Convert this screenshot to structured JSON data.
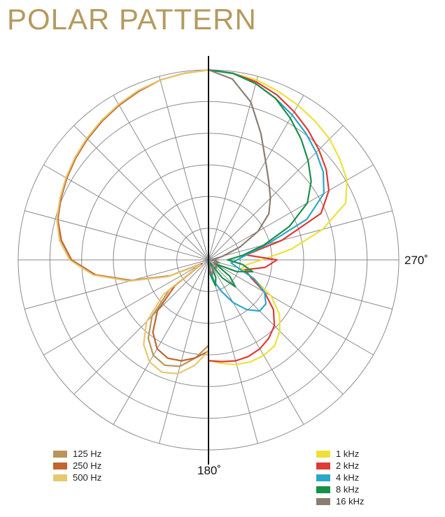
{
  "title": "POLAR PATTERN",
  "chart_data": {
    "type": "polar-line",
    "angle_labels": [
      {
        "deg": 270,
        "text": "270˚"
      },
      {
        "deg": 180,
        "text": "180˚"
      }
    ],
    "grid": {
      "rings": 6,
      "spokes_every_deg": 15
    },
    "series": [
      {
        "name": "125 Hz",
        "color": "#b8955a",
        "side": "left",
        "r": [
          1.0,
          0.99,
          0.98,
          0.96,
          0.94,
          0.92,
          0.9,
          0.88,
          0.86,
          0.84,
          0.82,
          0.78,
          0.72,
          0.6,
          0.42,
          0.22,
          0.04,
          0.26,
          0.42,
          0.52,
          0.58,
          0.6,
          0.58,
          0.52,
          0.45
        ],
        "angle_step": 7.5
      },
      {
        "name": "250 Hz",
        "color": "#c0652e",
        "side": "left",
        "r": [
          1.0,
          0.99,
          0.98,
          0.96,
          0.94,
          0.92,
          0.9,
          0.88,
          0.86,
          0.84,
          0.82,
          0.78,
          0.72,
          0.6,
          0.42,
          0.22,
          0.04,
          0.22,
          0.38,
          0.48,
          0.54,
          0.56,
          0.55,
          0.52,
          0.48
        ],
        "angle_step": 7.5
      },
      {
        "name": "500 Hz",
        "color": "#e6c870",
        "side": "left",
        "r": [
          1.0,
          0.99,
          0.98,
          0.965,
          0.945,
          0.925,
          0.905,
          0.885,
          0.865,
          0.845,
          0.825,
          0.79,
          0.73,
          0.61,
          0.43,
          0.23,
          0.05,
          0.3,
          0.46,
          0.56,
          0.62,
          0.64,
          0.62,
          0.56,
          0.48
        ],
        "angle_step": 7.5
      },
      {
        "name": "1 kHz",
        "color": "#ece13a",
        "side": "right",
        "r": [
          1.0,
          0.99,
          0.98,
          0.96,
          0.94,
          0.92,
          0.9,
          0.87,
          0.84,
          0.78,
          0.62,
          0.44,
          0.28,
          0.2,
          0.18,
          0.26,
          0.38,
          0.47,
          0.53,
          0.57,
          0.58,
          0.58,
          0.57,
          0.55,
          0.53
        ],
        "angle_step": 7.5
      },
      {
        "name": "2 kHz",
        "color": "#e03a34",
        "side": "right",
        "r": [
          1.0,
          0.99,
          0.97,
          0.94,
          0.9,
          0.86,
          0.82,
          0.78,
          0.73,
          0.64,
          0.4,
          0.2,
          0.36,
          0.3,
          0.2,
          0.24,
          0.34,
          0.43,
          0.49,
          0.52,
          0.54,
          0.55,
          0.55,
          0.54,
          0.53
        ],
        "angle_step": 7.5
      },
      {
        "name": "4 kHz",
        "color": "#2aa7c9",
        "side": "right",
        "r": [
          1.0,
          0.99,
          0.96,
          0.92,
          0.88,
          0.84,
          0.8,
          0.76,
          0.7,
          0.56,
          0.32,
          0.2,
          0.15,
          0.12,
          0.16,
          0.26,
          0.34,
          0.38,
          0.38,
          0.33,
          0.26,
          0.18,
          0.12,
          0.06,
          0.02
        ],
        "angle_step": 7.5
      },
      {
        "name": "8 kHz",
        "color": "#1a8f4c",
        "side": "right",
        "r": [
          1.0,
          0.99,
          0.96,
          0.92,
          0.86,
          0.8,
          0.74,
          0.68,
          0.6,
          0.46,
          0.3,
          0.18,
          0.1,
          0.18,
          0.24,
          0.16,
          0.04,
          0.14,
          0.2,
          0.12,
          0.02,
          0.1,
          0.14,
          0.08,
          0.02
        ],
        "angle_step": 7.5
      },
      {
        "name": "16 kHz",
        "color": "#8b7d72",
        "side": "right",
        "r": [
          1.0,
          0.96,
          0.86,
          0.72,
          0.6,
          0.52,
          0.46,
          0.4,
          0.3,
          0.18,
          0.08,
          0.04,
          0.02,
          0.04,
          0.06,
          0.04,
          0.03,
          0.05,
          0.06,
          0.05,
          0.04,
          0.06,
          0.08,
          0.06,
          0.03
        ],
        "angle_step": 7.5
      }
    ]
  },
  "legend_left": [
    {
      "label": "125 Hz",
      "color": "#b8955a"
    },
    {
      "label": "250 Hz",
      "color": "#c0652e"
    },
    {
      "label": "500 Hz",
      "color": "#e6c870"
    }
  ],
  "legend_right": [
    {
      "label": "1 kHz",
      "color": "#ece13a"
    },
    {
      "label": "2 kHz",
      "color": "#e03a34"
    },
    {
      "label": "4 kHz",
      "color": "#2aa7c9"
    },
    {
      "label": "8 kHz",
      "color": "#1a8f4c"
    },
    {
      "label": "16 kHz",
      "color": "#8b7d72"
    }
  ]
}
